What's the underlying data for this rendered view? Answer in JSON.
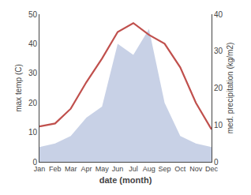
{
  "chart_data": {
    "type": "line",
    "xlabel": "date (month)",
    "ylabel": "max temp (C)",
    "y2label": "med. precipitation (kg/m2)",
    "categories": [
      "Jan",
      "Feb",
      "Mar",
      "Apr",
      "May",
      "Jun",
      "Jul",
      "Aug",
      "Sep",
      "Oct",
      "Nov",
      "Dec"
    ],
    "series": [
      {
        "type": "line",
        "color": "#c0504d",
        "values": [
          12,
          13,
          18,
          27,
          35,
          44,
          47,
          43,
          40,
          32,
          20,
          11
        ]
      },
      {
        "type": "area",
        "axis": "y2",
        "color": "#aab9d8",
        "values": [
          4,
          5,
          7,
          12,
          15,
          32,
          29,
          36,
          16,
          7,
          5,
          4
        ]
      }
    ],
    "ylim": [
      0,
      50
    ],
    "yticks": [
      0,
      10,
      20,
      30,
      40,
      50
    ],
    "y2lim": [
      0,
      40
    ],
    "y2ticks": [
      0,
      10,
      20,
      30,
      40
    ],
    "grid": false
  }
}
